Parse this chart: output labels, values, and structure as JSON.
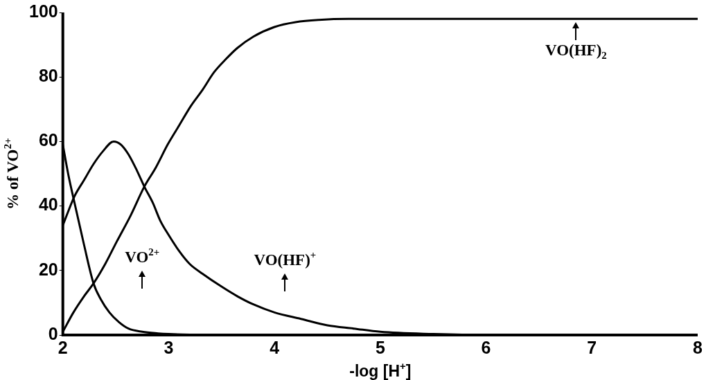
{
  "chart_data": {
    "type": "line",
    "xlabel": "-log [H$^{+}$]",
    "ylabel": "% of VO$^{2+}$",
    "xlim": [
      2,
      8
    ],
    "xticks": [
      2,
      3,
      4,
      5,
      6,
      7,
      8
    ],
    "ylim": [
      0,
      100
    ],
    "yticks": [
      0,
      20,
      40,
      60,
      80,
      100
    ],
    "grid": false,
    "legend": false,
    "marker": "none",
    "line_style": "solid",
    "series": [
      {
        "color": "#000000",
        "x": [
          2,
          2.05,
          2.11,
          2.2,
          2.29,
          2.36,
          2.44,
          2.53,
          2.62,
          2.75,
          2.9,
          3,
          3.2,
          3.5,
          4,
          5,
          6,
          7,
          8
        ],
        "values": [
          59,
          50,
          41,
          28,
          16,
          11,
          7,
          4,
          2,
          1,
          0.5,
          0.3,
          0.1,
          0,
          0,
          0,
          0,
          0,
          0
        ]
      },
      {
        "color": "#000000",
        "x": [
          2,
          2.11,
          2.2,
          2.29,
          2.38,
          2.48,
          2.55,
          2.62,
          2.7,
          2.77,
          2.85,
          2.92,
          3,
          3.1,
          3.2,
          3.32,
          3.5,
          3.65,
          3.8,
          4,
          4.25,
          4.5,
          4.75,
          5,
          5.5,
          6,
          7,
          8
        ],
        "values": [
          34,
          43,
          48,
          53,
          57,
          60,
          59,
          56,
          51,
          46,
          41,
          35.5,
          31,
          26,
          22,
          19,
          15,
          12,
          9.5,
          7,
          5,
          3,
          2,
          1,
          0.3,
          0,
          0,
          0
        ]
      },
      {
        "color": "#000000",
        "x": [
          2,
          2.1,
          2.2,
          2.29,
          2.4,
          2.51,
          2.64,
          2.77,
          2.88,
          2.99,
          3.1,
          3.21,
          3.32,
          3.43,
          3.54,
          3.65,
          3.8,
          4,
          4.2,
          4.42,
          4.7,
          5,
          6,
          7,
          8
        ],
        "values": [
          1,
          7,
          12,
          16,
          22,
          29,
          37,
          46,
          52,
          59,
          65,
          71,
          76,
          81.5,
          85.5,
          89,
          92.5,
          95.5,
          97,
          97.7,
          98,
          98,
          98,
          98,
          98
        ]
      }
    ],
    "annotations": [
      "VO$^{2+}$",
      "VO(HF)$^{+}$",
      "VO(HF)$_{2}$"
    ]
  }
}
